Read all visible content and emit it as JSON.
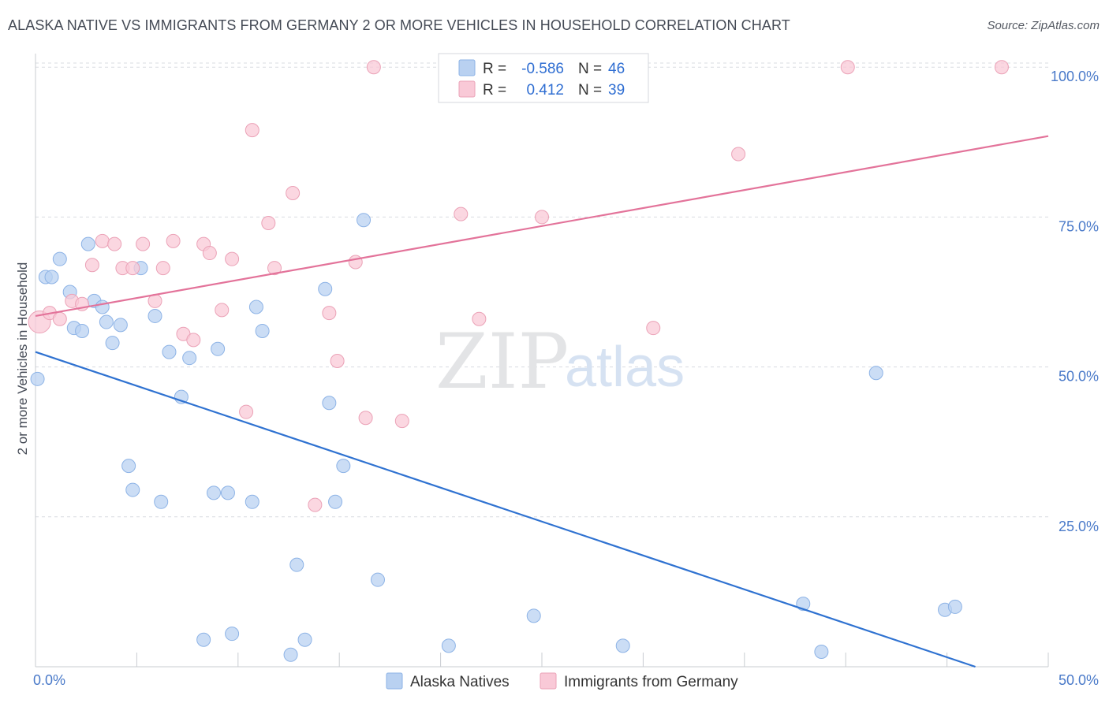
{
  "title": "ALASKA NATIVE VS IMMIGRANTS FROM GERMANY 2 OR MORE VEHICLES IN HOUSEHOLD CORRELATION CHART",
  "source": "Source: ZipAtlas.com",
  "watermark": {
    "zip": "ZIP",
    "atlas": "atlas"
  },
  "legend_box": [
    {
      "r_label": "R =",
      "r_value": "-0.586",
      "n_label": "N =",
      "n_value": "46"
    },
    {
      "r_label": "R =",
      "r_value": "0.412",
      "n_label": "N =",
      "n_value": "39"
    }
  ],
  "colors": {
    "blue_fill": "#b9d1f1",
    "blue_stroke": "#8db3e6",
    "blue_line": "#2f72d1",
    "pink_fill": "#f9c9d7",
    "pink_stroke": "#eba2b7",
    "pink_line": "#e3739a",
    "grid": "#d9dce1",
    "tick_text": "#4a7ac9"
  },
  "chart_data": {
    "type": "scatter",
    "title": "ALASKA NATIVE VS IMMIGRANTS FROM GERMANY 2 OR MORE VEHICLES IN HOUSEHOLD CORRELATION CHART",
    "xlabel": "",
    "ylabel": "2 or more Vehicles in Household",
    "xlim": [
      0,
      50
    ],
    "ylim": [
      0,
      102
    ],
    "x_tick_labels": [
      "0.0%",
      "50.0%"
    ],
    "y_ticks": [
      25,
      50,
      75,
      100
    ],
    "y_tick_labels": [
      "25.0%",
      "50.0%",
      "75.0%",
      "100.0%"
    ],
    "grid": true,
    "legend_placement": "bottom-center",
    "series": [
      {
        "name": "Alaska Natives",
        "r": -0.586,
        "n": 46,
        "trend": {
          "x": [
            0,
            46.4
          ],
          "y": [
            52.5,
            0
          ]
        },
        "points": [
          {
            "x": 0.1,
            "y": 48
          },
          {
            "x": 0.5,
            "y": 65
          },
          {
            "x": 0.8,
            "y": 65
          },
          {
            "x": 1.2,
            "y": 68
          },
          {
            "x": 1.7,
            "y": 62.5
          },
          {
            "x": 1.9,
            "y": 56.5
          },
          {
            "x": 2.3,
            "y": 56
          },
          {
            "x": 2.6,
            "y": 70.5
          },
          {
            "x": 2.9,
            "y": 61
          },
          {
            "x": 3.3,
            "y": 60
          },
          {
            "x": 3.5,
            "y": 57.5
          },
          {
            "x": 3.8,
            "y": 54
          },
          {
            "x": 4.2,
            "y": 57
          },
          {
            "x": 4.6,
            "y": 33.5
          },
          {
            "x": 4.8,
            "y": 29.5
          },
          {
            "x": 5.2,
            "y": 66.5
          },
          {
            "x": 5.9,
            "y": 58.5
          },
          {
            "x": 6.2,
            "y": 27.5
          },
          {
            "x": 6.6,
            "y": 52.5
          },
          {
            "x": 7.2,
            "y": 45
          },
          {
            "x": 7.6,
            "y": 51.5
          },
          {
            "x": 8.3,
            "y": 4.5
          },
          {
            "x": 8.8,
            "y": 29
          },
          {
            "x": 9.0,
            "y": 53
          },
          {
            "x": 9.5,
            "y": 29
          },
          {
            "x": 9.7,
            "y": 5.5
          },
          {
            "x": 10.7,
            "y": 27.5
          },
          {
            "x": 10.9,
            "y": 60
          },
          {
            "x": 11.2,
            "y": 56
          },
          {
            "x": 12.6,
            "y": 2
          },
          {
            "x": 12.9,
            "y": 17
          },
          {
            "x": 13.3,
            "y": 4.5
          },
          {
            "x": 14.3,
            "y": 63
          },
          {
            "x": 14.5,
            "y": 44
          },
          {
            "x": 14.8,
            "y": 27.5
          },
          {
            "x": 15.2,
            "y": 33.5
          },
          {
            "x": 16.2,
            "y": 74.5
          },
          {
            "x": 16.9,
            "y": 14.5
          },
          {
            "x": 20.4,
            "y": 3.5
          },
          {
            "x": 24.6,
            "y": 8.5
          },
          {
            "x": 29.0,
            "y": 3.5
          },
          {
            "x": 37.9,
            "y": 10.5
          },
          {
            "x": 38.8,
            "y": 2.5
          },
          {
            "x": 41.5,
            "y": 49
          },
          {
            "x": 44.9,
            "y": 9.5
          },
          {
            "x": 45.4,
            "y": 10
          }
        ]
      },
      {
        "name": "Immigrants from Germany",
        "r": 0.412,
        "n": 39,
        "trend": {
          "x": [
            0,
            50
          ],
          "y": [
            58.5,
            88.5
          ]
        },
        "points": [
          {
            "x": 0.2,
            "y": 57.5
          },
          {
            "x": 0.7,
            "y": 59
          },
          {
            "x": 1.2,
            "y": 58
          },
          {
            "x": 1.8,
            "y": 61
          },
          {
            "x": 2.3,
            "y": 60.5
          },
          {
            "x": 2.8,
            "y": 67
          },
          {
            "x": 3.3,
            "y": 71
          },
          {
            "x": 3.9,
            "y": 70.5
          },
          {
            "x": 4.3,
            "y": 66.5
          },
          {
            "x": 4.8,
            "y": 66.5
          },
          {
            "x": 5.3,
            "y": 70.5
          },
          {
            "x": 5.9,
            "y": 61
          },
          {
            "x": 6.3,
            "y": 66.5
          },
          {
            "x": 6.8,
            "y": 71
          },
          {
            "x": 7.3,
            "y": 55.5
          },
          {
            "x": 7.8,
            "y": 54.5
          },
          {
            "x": 8.3,
            "y": 70.5
          },
          {
            "x": 8.6,
            "y": 69
          },
          {
            "x": 9.2,
            "y": 59.5
          },
          {
            "x": 9.7,
            "y": 68
          },
          {
            "x": 10.4,
            "y": 42.5
          },
          {
            "x": 10.7,
            "y": 89.5
          },
          {
            "x": 11.5,
            "y": 74
          },
          {
            "x": 11.8,
            "y": 66.5
          },
          {
            "x": 12.7,
            "y": 79
          },
          {
            "x": 13.8,
            "y": 27
          },
          {
            "x": 14.5,
            "y": 59
          },
          {
            "x": 14.9,
            "y": 51
          },
          {
            "x": 15.8,
            "y": 67.5
          },
          {
            "x": 16.3,
            "y": 41.5
          },
          {
            "x": 16.7,
            "y": 100
          },
          {
            "x": 18.1,
            "y": 41
          },
          {
            "x": 21.0,
            "y": 75.5
          },
          {
            "x": 21.9,
            "y": 58
          },
          {
            "x": 25.0,
            "y": 75
          },
          {
            "x": 30.5,
            "y": 56.5
          },
          {
            "x": 34.7,
            "y": 85.5
          },
          {
            "x": 40.1,
            "y": 100
          },
          {
            "x": 47.7,
            "y": 100
          }
        ]
      }
    ]
  }
}
